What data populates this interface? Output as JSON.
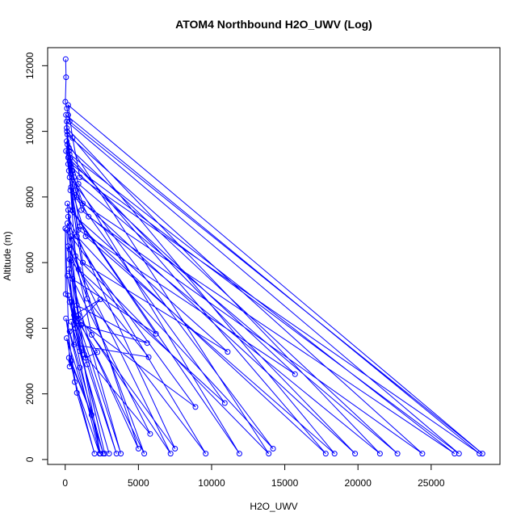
{
  "chart_data": {
    "type": "line",
    "title": "ATOM4 Northbound H2O_UWV (Log)",
    "xlabel": "H2O_UWV",
    "ylabel": "Altitude (m)",
    "xlim": [
      -1200,
      29700
    ],
    "ylim": [
      -150,
      12550
    ],
    "xticks": [
      0,
      5000,
      10000,
      15000,
      20000,
      25000
    ],
    "yticks": [
      0,
      2000,
      4000,
      6000,
      8000,
      10000,
      12000
    ],
    "xtick_labels": [
      "0",
      "5000",
      "10000",
      "15000",
      "20000",
      "25000"
    ],
    "ytick_labels": [
      "0",
      "2000",
      "4000",
      "6000",
      "8000",
      "10000",
      "12000"
    ],
    "grid": false,
    "legend": "none",
    "marker": "open-circle",
    "color": "#0000ff",
    "series": [
      {
        "x": [
          30,
          60,
          10,
          120,
          200,
          300,
          28500,
          200,
          500,
          1000,
          28300,
          50,
          150,
          400,
          26900,
          100,
          250,
          600,
          1200,
          26600,
          300,
          450,
          700,
          1600,
          24400,
          150,
          350,
          900,
          22700,
          250,
          500,
          1100,
          21500,
          100,
          300,
          800,
          19800,
          200,
          600,
          1400,
          18400,
          120,
          400,
          1000,
          17800,
          50,
          400,
          900,
          15700,
          200,
          800,
          14200,
          300,
          700,
          13900,
          100,
          500,
          11900,
          250,
          1200,
          11100,
          200,
          900,
          10900,
          350,
          1500,
          9600,
          150,
          700,
          8900,
          400,
          1800,
          7500,
          200,
          900,
          7200,
          300,
          1300,
          5800,
          500,
          6200,
          150,
          800,
          5600,
          1100,
          5400,
          200,
          600,
          5700,
          300,
          900,
          5000,
          100,
          450,
          3800,
          250,
          700,
          2700,
          300,
          1500,
          3500,
          200,
          1000,
          3000,
          400,
          2400,
          150,
          1400,
          2200,
          600,
          2400,
          300,
          1000,
          2600,
          100,
          650,
          2350,
          50,
          800,
          2000,
          250,
          1800,
          400,
          300,
          10,
          30
        ],
        "y": [
          12200,
          11650,
          10900,
          10700,
          10500,
          10300,
          180,
          10800,
          9800,
          8600,
          180,
          10500,
          9600,
          9000,
          180,
          10300,
          9400,
          8600,
          7800,
          180,
          9300,
          8800,
          8200,
          7400,
          180,
          9900,
          9200,
          8400,
          180,
          9500,
          8800,
          7600,
          180,
          10100,
          9100,
          8000,
          180,
          9200,
          8000,
          6800,
          180,
          10000,
          8700,
          7100,
          180,
          9400,
          8300,
          7000,
          2600,
          9000,
          6800,
          330,
          8600,
          6200,
          180,
          9700,
          7600,
          180,
          8800,
          6000,
          3280,
          7600,
          5800,
          1720,
          8200,
          4900,
          180,
          7200,
          4300,
          1600,
          6800,
          3800,
          330,
          7400,
          4400,
          180,
          6400,
          3200,
          780,
          5500,
          3830,
          7800,
          4700,
          3550,
          4100,
          180,
          6500,
          3500,
          3120,
          6100,
          4300,
          330,
          7000,
          4800,
          180,
          5800,
          4000,
          180,
          4800,
          2900,
          180,
          5000,
          3300,
          180,
          4200,
          180,
          5600,
          3100,
          3270,
          4400,
          4880,
          3900,
          2800,
          180,
          3700,
          2360,
          180,
          4300,
          2030,
          180,
          3100,
          1360,
          3000,
          2830,
          7040,
          5040
        ]
      }
    ]
  }
}
